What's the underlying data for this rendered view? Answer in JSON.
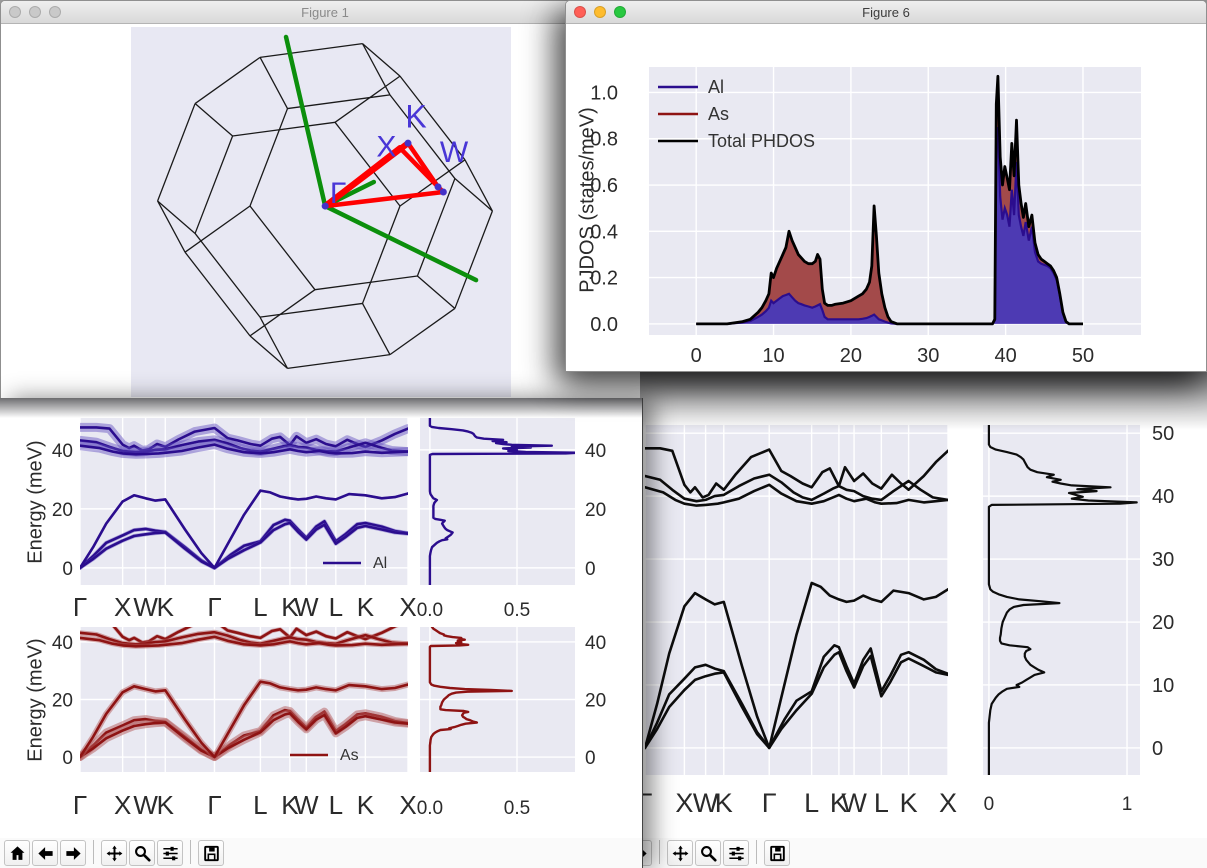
{
  "windows": {
    "figure1": {
      "title": "Figure 1",
      "active": false
    },
    "figure6": {
      "title": "Figure 6",
      "active": true
    },
    "traffic_active": [
      "#ff5f57",
      "#febc2e",
      "#28c840"
    ],
    "traffic_inactive": "#c9c9c9"
  },
  "labels": {
    "energy_axis": "Energy (meV)",
    "pjdos_axis": "PJDOS (states/meV)"
  },
  "toolbar": {
    "buttons": [
      "home",
      "back",
      "forward",
      "pan",
      "zoom",
      "configure-subplots",
      "save"
    ]
  },
  "colors": {
    "plot_bg": "#e9e9f2",
    "grid": "#ffffff",
    "tick": "#2b2b2b",
    "al_line": "#2b0d8e",
    "al_fill": "#4d3ab3",
    "al_halo": "rgba(95,75,190,0.45)",
    "as_line": "#8e1313",
    "as_fill": "#a34a4a",
    "as_halo": "rgba(180,90,90,0.5)",
    "total_line": "#000000",
    "bz_wire": "#1a1a1a",
    "bz_axis": "#0c8f0c",
    "bz_path": "#ff0000",
    "bz_label": "#4936d6",
    "bz_dot": "#4431c8"
  },
  "figure1_bz": {
    "point_labels": {
      "gamma": "Γ",
      "x": "X",
      "k": "K",
      "w": "W"
    },
    "points_2d": {
      "G": [
        0.511,
        0.484
      ],
      "X": [
        0.708,
        0.327
      ],
      "K": [
        0.729,
        0.314
      ],
      "W": [
        0.808,
        0.432
      ],
      "U": [
        0.822,
        0.446
      ]
    },
    "segments": [
      [
        "G",
        "X",
        6
      ],
      [
        "G",
        "K",
        6
      ],
      [
        "X",
        "W",
        4.5
      ],
      [
        "K",
        "W",
        4.5
      ],
      [
        "G",
        "U",
        4.5
      ],
      [
        "U",
        "W",
        4.5
      ]
    ],
    "dots": [
      "G",
      "K",
      "W",
      "U"
    ],
    "label_pos": {
      "gamma": [
        0.545,
        0.475
      ],
      "x": [
        0.672,
        0.35
      ],
      "k": [
        0.75,
        0.272
      ],
      "w": [
        0.85,
        0.365
      ]
    },
    "axes_2d": [
      [
        0.408,
        0.027
      ],
      [
        0.639,
        0.419
      ],
      [
        0.908,
        0.684
      ]
    ]
  },
  "phonon": {
    "kpath_labels": [
      "Γ",
      "X",
      "W",
      "K",
      "Γ",
      "L",
      "K",
      "W",
      "L",
      "K",
      "X"
    ],
    "kpath_pos": [
      0,
      0.13,
      0.2,
      0.26,
      0.41,
      0.55,
      0.64,
      0.69,
      0.78,
      0.87,
      1
    ],
    "branches": [
      [
        [
          0,
          0
        ],
        [
          0.04,
          4
        ],
        [
          0.08,
          8.5
        ],
        [
          0.13,
          11
        ],
        [
          0.165,
          12.8
        ],
        [
          0.2,
          13.2
        ],
        [
          0.23,
          12.6
        ],
        [
          0.26,
          12.2
        ],
        [
          0.32,
          7
        ],
        [
          0.37,
          2.5
        ],
        [
          0.41,
          0
        ],
        [
          0.46,
          4.5
        ],
        [
          0.5,
          7.5
        ],
        [
          0.55,
          9
        ],
        [
          0.59,
          14.5
        ],
        [
          0.625,
          16.3
        ],
        [
          0.64,
          16
        ],
        [
          0.665,
          13
        ],
        [
          0.69,
          10.2
        ],
        [
          0.72,
          14
        ],
        [
          0.745,
          15.8
        ],
        [
          0.78,
          9
        ],
        [
          0.81,
          11.5
        ],
        [
          0.845,
          14.8
        ],
        [
          0.87,
          15.2
        ],
        [
          0.92,
          14
        ],
        [
          0.96,
          12.5
        ],
        [
          1,
          11.8
        ]
      ],
      [
        [
          0,
          0
        ],
        [
          0.04,
          3
        ],
        [
          0.08,
          6.5
        ],
        [
          0.13,
          9.2
        ],
        [
          0.165,
          10.8
        ],
        [
          0.2,
          11.4
        ],
        [
          0.23,
          11.8
        ],
        [
          0.26,
          12
        ],
        [
          0.32,
          6.5
        ],
        [
          0.37,
          2.2
        ],
        [
          0.41,
          0
        ],
        [
          0.45,
          3
        ],
        [
          0.5,
          6
        ],
        [
          0.55,
          8.6
        ],
        [
          0.59,
          12.8
        ],
        [
          0.625,
          14.8
        ],
        [
          0.64,
          15.2
        ],
        [
          0.665,
          12.2
        ],
        [
          0.69,
          9.6
        ],
        [
          0.72,
          13
        ],
        [
          0.745,
          14.6
        ],
        [
          0.78,
          8.2
        ],
        [
          0.81,
          10.5
        ],
        [
          0.845,
          13.6
        ],
        [
          0.87,
          14.2
        ],
        [
          0.92,
          13
        ],
        [
          0.96,
          12
        ],
        [
          1,
          11.6
        ]
      ],
      [
        [
          0,
          0
        ],
        [
          0.04,
          7
        ],
        [
          0.08,
          15
        ],
        [
          0.13,
          22.5
        ],
        [
          0.165,
          24.6
        ],
        [
          0.2,
          23.6
        ],
        [
          0.23,
          22.8
        ],
        [
          0.26,
          23.2
        ],
        [
          0.32,
          13
        ],
        [
          0.37,
          5
        ],
        [
          0.41,
          0
        ],
        [
          0.45,
          8
        ],
        [
          0.5,
          18
        ],
        [
          0.55,
          26.2
        ],
        [
          0.58,
          25.6
        ],
        [
          0.61,
          24.2
        ],
        [
          0.64,
          23.6
        ],
        [
          0.665,
          23.2
        ],
        [
          0.69,
          23.4
        ],
        [
          0.72,
          24.2
        ],
        [
          0.75,
          23.6
        ],
        [
          0.78,
          23.2
        ],
        [
          0.82,
          25
        ],
        [
          0.87,
          24.6
        ],
        [
          0.92,
          23.6
        ],
        [
          0.96,
          24
        ],
        [
          1,
          25.2
        ]
      ],
      [
        [
          0,
          47.6
        ],
        [
          0.05,
          47.6
        ],
        [
          0.09,
          47.2
        ],
        [
          0.13,
          41.8
        ],
        [
          0.15,
          40.6
        ],
        [
          0.165,
          41.4
        ],
        [
          0.19,
          39.8
        ],
        [
          0.21,
          40.2
        ],
        [
          0.235,
          42
        ],
        [
          0.26,
          41
        ],
        [
          0.3,
          43.5
        ],
        [
          0.35,
          46.2
        ],
        [
          0.41,
          47.4
        ],
        [
          0.45,
          44
        ],
        [
          0.48,
          43.2
        ],
        [
          0.52,
          42
        ],
        [
          0.55,
          41.4
        ],
        [
          0.585,
          43.8
        ],
        [
          0.61,
          44.4
        ],
        [
          0.64,
          41.6
        ],
        [
          0.66,
          44.6
        ],
        [
          0.69,
          42.4
        ],
        [
          0.72,
          43.6
        ],
        [
          0.75,
          42
        ],
        [
          0.78,
          41.2
        ],
        [
          0.815,
          43.4
        ],
        [
          0.845,
          42
        ],
        [
          0.87,
          41
        ],
        [
          0.92,
          43.2
        ],
        [
          0.96,
          45.4
        ],
        [
          1,
          47.2
        ]
      ],
      [
        [
          0,
          43.2
        ],
        [
          0.05,
          42.6
        ],
        [
          0.09,
          41
        ],
        [
          0.13,
          39.6
        ],
        [
          0.17,
          39.2
        ],
        [
          0.2,
          39.4
        ],
        [
          0.23,
          40
        ],
        [
          0.26,
          40.2
        ],
        [
          0.31,
          41.6
        ],
        [
          0.36,
          42.8
        ],
        [
          0.41,
          43.4
        ],
        [
          0.45,
          42.2
        ],
        [
          0.49,
          40.6
        ],
        [
          0.52,
          39.8
        ],
        [
          0.55,
          39.4
        ],
        [
          0.59,
          40.4
        ],
        [
          0.62,
          41.2
        ],
        [
          0.64,
          41.6
        ],
        [
          0.665,
          41
        ],
        [
          0.69,
          40.8
        ],
        [
          0.72,
          40
        ],
        [
          0.75,
          39.6
        ],
        [
          0.78,
          39.4
        ],
        [
          0.82,
          40.8
        ],
        [
          0.87,
          42.4
        ],
        [
          0.91,
          41
        ],
        [
          0.95,
          39.8
        ],
        [
          1,
          39.4
        ]
      ],
      [
        [
          0,
          41.4
        ],
        [
          0.06,
          40.6
        ],
        [
          0.1,
          39.4
        ],
        [
          0.13,
          38.8
        ],
        [
          0.17,
          38.5
        ],
        [
          0.2,
          38.6
        ],
        [
          0.24,
          38.8
        ],
        [
          0.26,
          39
        ],
        [
          0.31,
          39.6
        ],
        [
          0.36,
          40.8
        ],
        [
          0.41,
          41.8
        ],
        [
          0.45,
          40.4
        ],
        [
          0.5,
          39.2
        ],
        [
          0.55,
          38.8
        ],
        [
          0.59,
          39.2
        ],
        [
          0.62,
          39.8
        ],
        [
          0.64,
          40.2
        ],
        [
          0.665,
          39.6
        ],
        [
          0.69,
          39.2
        ],
        [
          0.73,
          39.6
        ],
        [
          0.76,
          39
        ],
        [
          0.78,
          38.8
        ],
        [
          0.83,
          38.9
        ],
        [
          0.87,
          39.4
        ],
        [
          0.92,
          39
        ],
        [
          0.96,
          39.2
        ],
        [
          1,
          39.4
        ]
      ]
    ],
    "halo_al": [
      4,
      4,
      2.5,
      9,
      9,
      9
    ],
    "halo_as": [
      8,
      8,
      6,
      4,
      5,
      5
    ]
  },
  "chart_data": [
    {
      "id": "pjdos",
      "type": "area",
      "title": "",
      "xlabel": "",
      "ylabel": "PJDOS (states/meV)",
      "xlim": [
        -6.1,
        57.5
      ],
      "ylim": [
        -0.048,
        1.11
      ],
      "xticks": [
        "0",
        "10",
        "20",
        "30",
        "40",
        "50"
      ],
      "xtick_vals": [
        0,
        10,
        20,
        30,
        40,
        50
      ],
      "yticks": [
        "0.0",
        "0.2",
        "0.4",
        "0.6",
        "0.8",
        "1.0"
      ],
      "ytick_vals": [
        0,
        0.2,
        0.4,
        0.6,
        0.8,
        1.0
      ],
      "legend": [
        "Al",
        "As",
        "Total PHDOS"
      ],
      "legend_position": "upper left",
      "grid": true,
      "x": [
        0,
        4,
        5,
        6,
        7,
        8,
        8.5,
        9,
        9.4,
        9.7,
        10,
        10.4,
        10.8,
        11.2,
        11.6,
        12,
        12.4,
        12.8,
        13.2,
        13.6,
        14,
        14.5,
        15,
        15.4,
        15.7,
        16,
        16.3,
        16.6,
        17,
        17.5,
        18,
        19,
        20,
        21,
        21.5,
        22,
        22.4,
        22.7,
        23,
        23.3,
        23.6,
        24,
        24.4,
        24.8,
        25.2,
        26,
        28,
        32,
        36,
        38.3,
        38.6,
        38.8,
        39,
        39.3,
        39.6,
        39.9,
        40.2,
        40.5,
        40.8,
        41.1,
        41.4,
        41.7,
        42,
        42.3,
        42.6,
        43,
        43.4,
        43.8,
        44.2,
        44.6,
        45,
        45.4,
        45.8,
        46.2,
        46.6,
        47,
        47.4,
        47.8,
        48.2,
        50
      ],
      "series": [
        {
          "name": "Al",
          "values": [
            0,
            0,
            0.003,
            0.006,
            0.012,
            0.03,
            0.04,
            0.055,
            0.07,
            0.1,
            0.09,
            0.1,
            0.11,
            0.12,
            0.125,
            0.13,
            0.115,
            0.1,
            0.09,
            0.085,
            0.08,
            0.075,
            0.07,
            0.075,
            0.08,
            0.085,
            0.06,
            0.03,
            0.02,
            0.02,
            0.02,
            0.02,
            0.02,
            0.02,
            0.022,
            0.025,
            0.03,
            0.035,
            0.04,
            0.03,
            0.02,
            0.015,
            0.01,
            0.005,
            0.002,
            0,
            0,
            0,
            0,
            0,
            0.015,
            0.78,
            0.85,
            0.55,
            0.45,
            0.5,
            0.47,
            0.42,
            0.58,
            0.47,
            0.7,
            0.47,
            0.42,
            0.38,
            0.44,
            0.36,
            0.42,
            0.31,
            0.27,
            0.26,
            0.255,
            0.25,
            0.24,
            0.22,
            0.19,
            0.125,
            0.05,
            0.01,
            0,
            0
          ]
        },
        {
          "name": "As",
          "values": [
            0,
            0,
            0.002,
            0.004,
            0.008,
            0.02,
            0.03,
            0.045,
            0.06,
            0.12,
            0.11,
            0.14,
            0.16,
            0.18,
            0.205,
            0.27,
            0.245,
            0.23,
            0.21,
            0.2,
            0.19,
            0.185,
            0.19,
            0.195,
            0.22,
            0.195,
            0.09,
            0.06,
            0.06,
            0.06,
            0.065,
            0.07,
            0.08,
            0.1,
            0.108,
            0.125,
            0.15,
            0.215,
            0.47,
            0.35,
            0.2,
            0.115,
            0.06,
            0.025,
            0.008,
            0,
            0,
            0,
            0,
            0,
            0.005,
            0.17,
            0.22,
            0.17,
            0.15,
            0.18,
            0.16,
            0.16,
            0.2,
            0.17,
            0.18,
            0.13,
            0.1,
            0.08,
            0.08,
            0.06,
            0.05,
            0.04,
            0.03,
            0.02,
            0.015,
            0.01,
            0.01,
            0.01,
            0.01,
            0.005,
            0,
            0,
            0,
            0
          ]
        },
        {
          "name": "Total PHDOS",
          "derived": "sum"
        }
      ]
    },
    {
      "id": "bands-al",
      "type": "line",
      "element": "Al",
      "ylabel": "Energy (meV)",
      "yticks": [
        "0",
        "20",
        "40"
      ],
      "ytick_vals": [
        0,
        20,
        40
      ],
      "ylim": [
        -5.8,
        50.8
      ],
      "legend": "Al",
      "dos_xticks": [
        "0.0",
        "0.5"
      ],
      "dos_xtick_vals": [
        0,
        0.5
      ]
    },
    {
      "id": "bands-as",
      "type": "line",
      "element": "As",
      "ylabel": "Energy (meV)",
      "yticks": [
        "0",
        "20",
        "40"
      ],
      "ytick_vals": [
        0,
        20,
        40
      ],
      "ylim": [
        -5.2,
        45.2
      ],
      "legend": "As",
      "dos_xticks": [
        "0.0",
        "0.5"
      ],
      "dos_xtick_vals": [
        0,
        0.5
      ]
    },
    {
      "id": "bands-total",
      "type": "line",
      "element": "Total",
      "yticks": [
        "0",
        "10",
        "20",
        "30",
        "40",
        "50"
      ],
      "ytick_vals": [
        0,
        10,
        20,
        30,
        40,
        50
      ],
      "ylim": [
        -4.3,
        51.3
      ],
      "dos_xticks": [
        "0",
        "1"
      ],
      "dos_xtick_vals": [
        0,
        1
      ]
    }
  ]
}
